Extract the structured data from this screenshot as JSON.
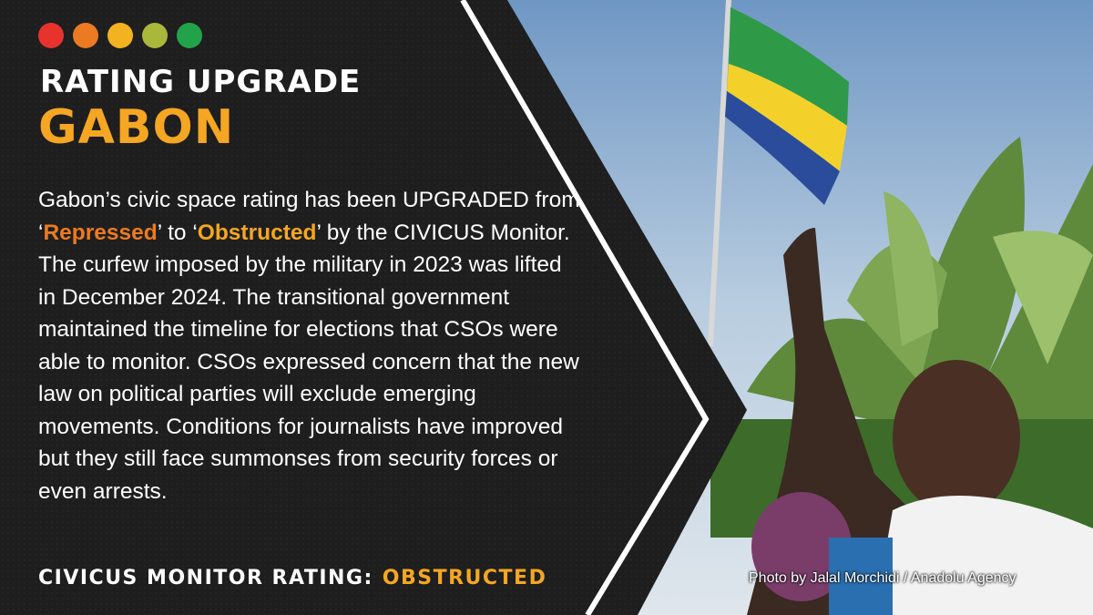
{
  "header": {
    "title": "RATING UPGRADE",
    "country": "GABON"
  },
  "body": {
    "intro": "Gabon’s civic space rating has been UPGRADED from ‘",
    "from_rating": "Repressed",
    "middle": "’ to ‘",
    "to_rating": "Obstructed",
    "rest": "’ by the CIVICUS Monitor. The curfew imposed by the military in 2023 was lifted in December 2024. The transitional government maintained the timeline for elections that CSOs were able to monitor. CSOs expressed concern that the new law on political parties will exclude emerging movements. Conditions for journalists have improved but they still face summonses from security forces or even arrests."
  },
  "footer": {
    "label": "CIVICUS MONITOR RATING:",
    "rating": "OBSTRUCTED"
  },
  "photo_credit": "Photo by Jalal Morchidi / Anadolu Agency"
}
